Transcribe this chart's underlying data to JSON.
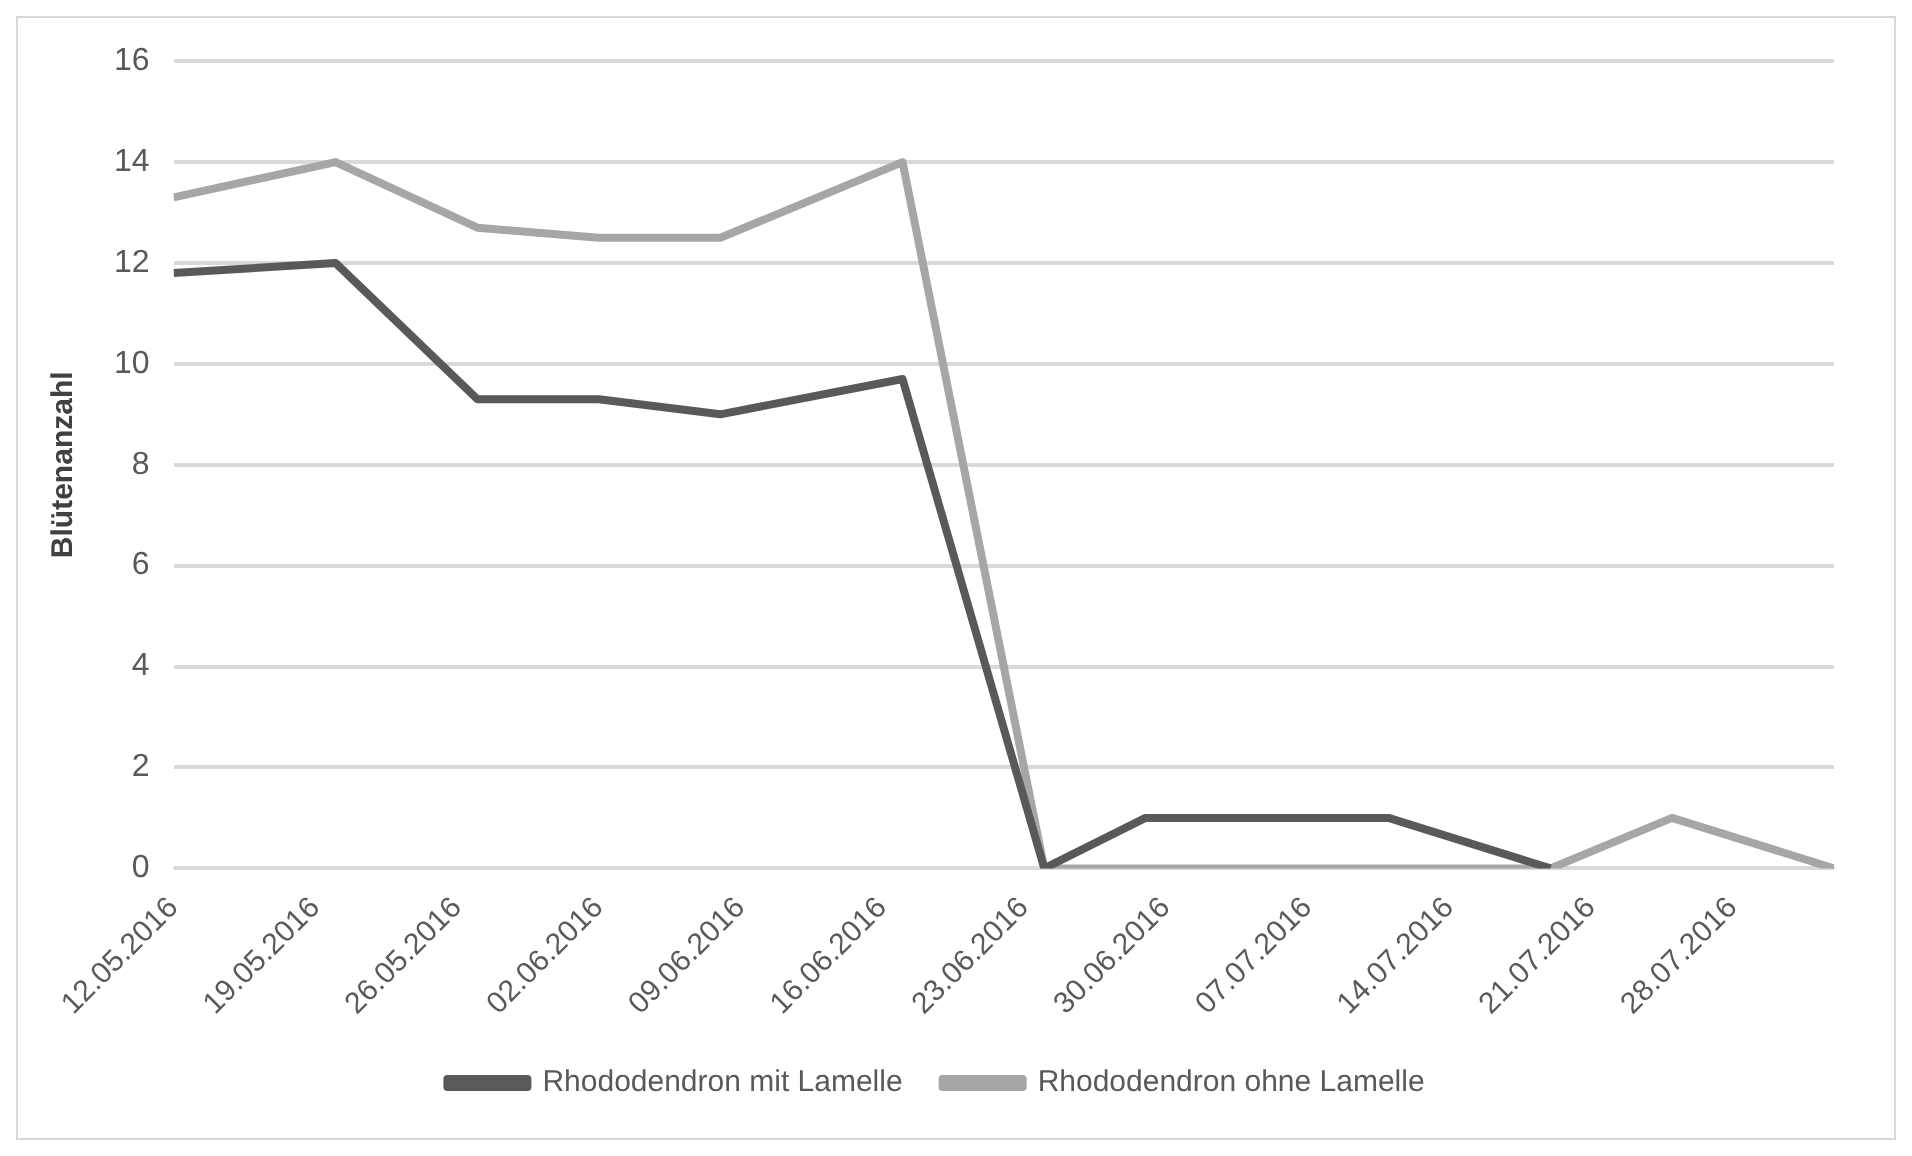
{
  "chart_data": {
    "type": "line",
    "ylabel": "Blütenanzahl",
    "x": [
      "2016-05-12",
      "2016-05-20",
      "2016-05-27",
      "2016-06-02",
      "2016-06-08",
      "2016-06-17",
      "2016-06-24",
      "2016-06-29",
      "2016-07-11",
      "2016-07-19",
      "2016-07-25",
      "2016-08-02"
    ],
    "series": [
      {
        "name": "Rhododendron mit Lamelle",
        "color": "#595959",
        "values": [
          11.8,
          12.0,
          9.3,
          9.3,
          9.0,
          9.7,
          0,
          1,
          1,
          0,
          null,
          null
        ]
      },
      {
        "name": "Rhododendron ohne Lamelle",
        "color": "#a6a6a6",
        "values": [
          13.3,
          14.0,
          12.7,
          12.5,
          12.5,
          14.0,
          0,
          0,
          0,
          0,
          1,
          0
        ]
      }
    ],
    "xlim": [
      "2016-05-12",
      "2016-08-02"
    ],
    "xticks": [
      {
        "value": "2016-05-12",
        "label": "12.05.2016"
      },
      {
        "value": "2016-05-19",
        "label": "19.05.2016"
      },
      {
        "value": "2016-05-26",
        "label": "26.05.2016"
      },
      {
        "value": "2016-06-02",
        "label": "02.06.2016"
      },
      {
        "value": "2016-06-09",
        "label": "09.06.2016"
      },
      {
        "value": "2016-06-16",
        "label": "16.06.2016"
      },
      {
        "value": "2016-06-23",
        "label": "23.06.2016"
      },
      {
        "value": "2016-06-30",
        "label": "30.06.2016"
      },
      {
        "value": "2016-07-07",
        "label": "07.07.2016"
      },
      {
        "value": "2016-07-14",
        "label": "14.07.2016"
      },
      {
        "value": "2016-07-21",
        "label": "21.07.2016"
      },
      {
        "value": "2016-07-28",
        "label": "28.07.2016"
      }
    ],
    "ylim": [
      0,
      16
    ],
    "yticks": [
      0,
      2,
      4,
      6,
      8,
      10,
      12,
      14,
      16
    ],
    "grid": "y",
    "legend": "bottom",
    "marker": "none",
    "line_style": "solid"
  }
}
